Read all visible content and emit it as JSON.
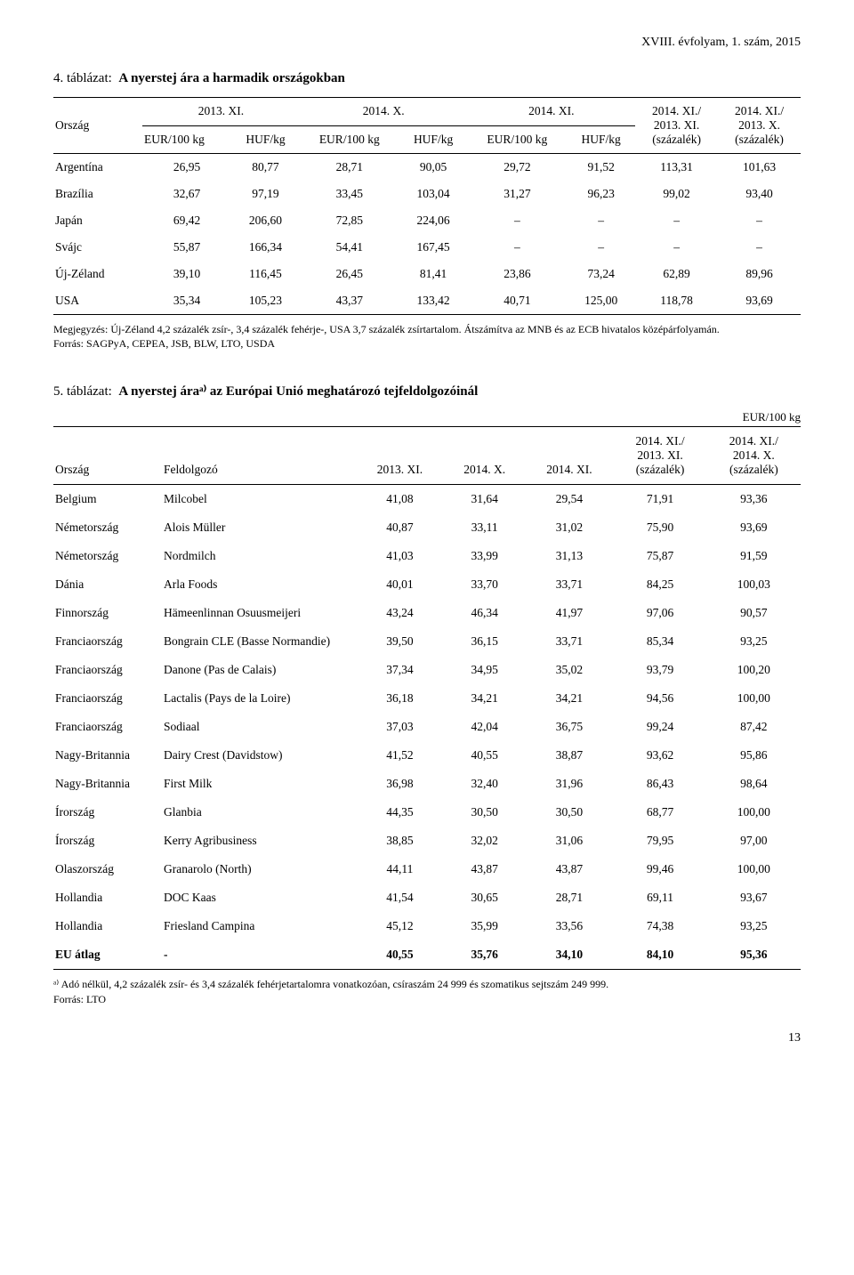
{
  "page_header": "XVIII. évfolyam, 1. szám, 2015",
  "page_number": "13",
  "table1": {
    "title_num": "4. táblázat:",
    "title_name": "A nyerstej ára a harmadik országokban",
    "col_country": "Ország",
    "periods": [
      "2013. XI.",
      "2014. X.",
      "2014. XI."
    ],
    "sub_units": [
      "EUR/100 kg",
      "HUF/kg",
      "EUR/100 kg",
      "HUF/kg",
      "EUR/100 kg",
      "HUF/kg"
    ],
    "ratio_cols": [
      "2014. XI./\n2013. XI.\n(százalék)",
      "2014. XI./\n2013. X.\n(százalék)"
    ],
    "rows": [
      {
        "c": "Argentína",
        "v": [
          "26,95",
          "80,77",
          "28,71",
          "90,05",
          "29,72",
          "91,52",
          "113,31",
          "101,63"
        ]
      },
      {
        "c": "Brazília",
        "v": [
          "32,67",
          "97,19",
          "33,45",
          "103,04",
          "31,27",
          "96,23",
          "99,02",
          "93,40"
        ]
      },
      {
        "c": "Japán",
        "v": [
          "69,42",
          "206,60",
          "72,85",
          "224,06",
          "–",
          "–",
          "–",
          "–"
        ]
      },
      {
        "c": "Svájc",
        "v": [
          "55,87",
          "166,34",
          "54,41",
          "167,45",
          "–",
          "–",
          "–",
          "–"
        ]
      },
      {
        "c": "Új-Zéland",
        "v": [
          "39,10",
          "116,45",
          "26,45",
          "81,41",
          "23,86",
          "73,24",
          "62,89",
          "89,96"
        ]
      },
      {
        "c": "USA",
        "v": [
          "35,34",
          "105,23",
          "43,37",
          "133,42",
          "40,71",
          "125,00",
          "118,78",
          "93,69"
        ]
      }
    ],
    "note": "Megjegyzés: Új-Zéland 4,2 százalék zsír-, 3,4 százalék fehérje-, USA 3,7 százalék zsírtartalom. Átszámítva az MNB és az ECB hivatalos középárfolyamán.\nForrás: SAGPyA, CEPEA, JSB, BLW, LTO, USDA"
  },
  "table2": {
    "title_num": "5. táblázat:",
    "title_name": "A nyerstej áraᵃ⁾ az Európai Unió meghatározó tejfeldolgozóinál",
    "unit": "EUR/100 kg",
    "headers": [
      "Ország",
      "Feldolgozó",
      "2013. XI.",
      "2014. X.",
      "2014. XI.",
      "2014. XI./\n2013. XI.\n(százalék)",
      "2014. XI./\n2014. X.\n(százalék)"
    ],
    "rows": [
      {
        "c": "Belgium",
        "p": "Milcobel",
        "v": [
          "41,08",
          "31,64",
          "29,54",
          "71,91",
          "93,36"
        ]
      },
      {
        "c": "Németország",
        "p": "Alois Müller",
        "v": [
          "40,87",
          "33,11",
          "31,02",
          "75,90",
          "93,69"
        ]
      },
      {
        "c": "Németország",
        "p": "Nordmilch",
        "v": [
          "41,03",
          "33,99",
          "31,13",
          "75,87",
          "91,59"
        ]
      },
      {
        "c": "Dánia",
        "p": "Arla Foods",
        "v": [
          "40,01",
          "33,70",
          "33,71",
          "84,25",
          "100,03"
        ]
      },
      {
        "c": "Finnország",
        "p": "Hämeenlinnan Osuusmeijeri",
        "v": [
          "43,24",
          "46,34",
          "41,97",
          "97,06",
          "90,57"
        ]
      },
      {
        "c": "Franciaország",
        "p": "Bongrain CLE (Basse Normandie)",
        "v": [
          "39,50",
          "36,15",
          "33,71",
          "85,34",
          "93,25"
        ]
      },
      {
        "c": "Franciaország",
        "p": "Danone (Pas de Calais)",
        "v": [
          "37,34",
          "34,95",
          "35,02",
          "93,79",
          "100,20"
        ]
      },
      {
        "c": "Franciaország",
        "p": "Lactalis (Pays de la Loire)",
        "v": [
          "36,18",
          "34,21",
          "34,21",
          "94,56",
          "100,00"
        ]
      },
      {
        "c": "Franciaország",
        "p": "Sodiaal",
        "v": [
          "37,03",
          "42,04",
          "36,75",
          "99,24",
          "87,42"
        ]
      },
      {
        "c": "Nagy-Britannia",
        "p": "Dairy Crest (Davidstow)",
        "v": [
          "41,52",
          "40,55",
          "38,87",
          "93,62",
          "95,86"
        ]
      },
      {
        "c": "Nagy-Britannia",
        "p": "First Milk",
        "v": [
          "36,98",
          "32,40",
          "31,96",
          "86,43",
          "98,64"
        ]
      },
      {
        "c": "Írország",
        "p": "Glanbia",
        "v": [
          "44,35",
          "30,50",
          "30,50",
          "68,77",
          "100,00"
        ]
      },
      {
        "c": "Írország",
        "p": "Kerry Agribusiness",
        "v": [
          "38,85",
          "32,02",
          "31,06",
          "79,95",
          "97,00"
        ]
      },
      {
        "c": "Olaszország",
        "p": "Granarolo (North)",
        "v": [
          "44,11",
          "43,87",
          "43,87",
          "99,46",
          "100,00"
        ]
      },
      {
        "c": "Hollandia",
        "p": "DOC Kaas",
        "v": [
          "41,54",
          "30,65",
          "28,71",
          "69,11",
          "93,67"
        ]
      },
      {
        "c": "Hollandia",
        "p": "Friesland Campina",
        "v": [
          "45,12",
          "35,99",
          "33,56",
          "74,38",
          "93,25"
        ]
      }
    ],
    "avg_row": {
      "c": "EU átlag",
      "p": "-",
      "v": [
        "40,55",
        "35,76",
        "34,10",
        "84,10",
        "95,36"
      ]
    },
    "note": "ᵃ⁾ Adó nélkül, 4,2 százalék zsír- és 3,4 százalék fehérjetartalomra vonatkozóan, csíraszám 24 999 és szomatikus sejtszám 249 999.\nForrás: LTO"
  }
}
